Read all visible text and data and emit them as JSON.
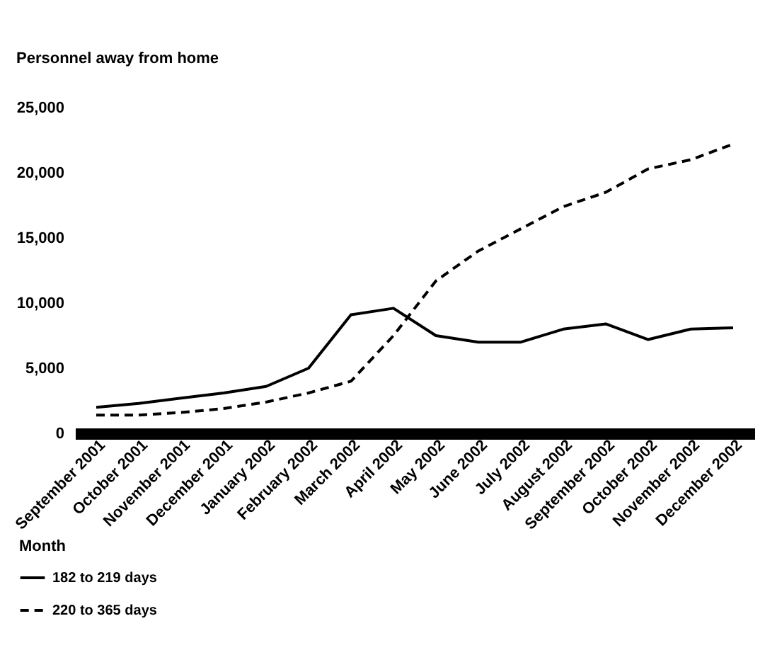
{
  "chart_data": {
    "type": "line",
    "ylabel": "Personnel away from home",
    "xlabel": "Month",
    "categories": [
      "September 2001",
      "October 2001",
      "November 2001",
      "December 2001",
      "January 2002",
      "February 2002",
      "March 2002",
      "April 2002",
      "May 2002",
      "June 2002",
      "July 2002",
      "August 2002",
      "September 2002",
      "October 2002",
      "November 2002",
      "December 2002"
    ],
    "ylim": [
      0,
      25000
    ],
    "yticks": [
      {
        "value": 0,
        "label": "0"
      },
      {
        "value": 5000,
        "label": "5,000"
      },
      {
        "value": 10000,
        "label": "10,000"
      },
      {
        "value": 15000,
        "label": "15,000"
      },
      {
        "value": 20000,
        "label": "20,000"
      },
      {
        "value": 25000,
        "label": "25,000"
      }
    ],
    "grid": false,
    "legend": "bottom left",
    "marker": "none",
    "series": [
      {
        "name": "182 to 219 days",
        "color": "#000000",
        "line_style": "solid",
        "values": [
          2000,
          2300,
          2700,
          3100,
          3600,
          5000,
          9100,
          9600,
          7500,
          7000,
          7000,
          8000,
          8400,
          7200,
          8000,
          8100
        ]
      },
      {
        "name": "220 to 365 days",
        "color": "#000000",
        "line_style": "dashed",
        "values": [
          1400,
          1400,
          1600,
          1900,
          2400,
          3100,
          4000,
          7500,
          11700,
          14000,
          15700,
          17400,
          18500,
          20300,
          21000,
          22200
        ]
      }
    ]
  }
}
